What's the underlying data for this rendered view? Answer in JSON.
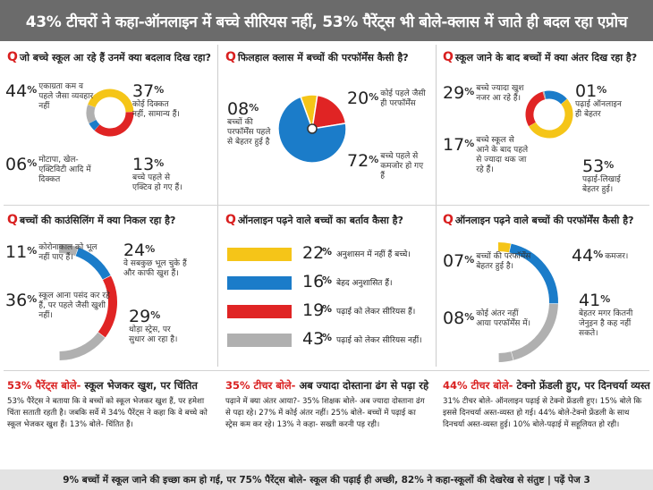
{
  "headline": "43% टीचरों ने कहा-ऑनलाइन में बच्चे सीरियस नहीं, 53% पैरेंट्स भी बोले-क्लास में जाते ही बदल रहा एप्रोच",
  "colors": {
    "yellow": "#f5c518",
    "red": "#e02424",
    "blue": "#1b7cc9",
    "gray": "#b0b0b0",
    "banner": "#6b6b6b"
  },
  "panels": {
    "p1": {
      "question": "जो बच्चे स्कूल आ रहे हैं उनमें क्या बदलाव दिख रहा?",
      "items": [
        {
          "num": "44",
          "pct": "%",
          "label": "एकाग्रता कम व पहले जैसा व्यवहार नहीं"
        },
        {
          "num": "37",
          "pct": "%",
          "label": "कोई दिक्कत नहीं, सामान्य हैं।"
        },
        {
          "num": "06",
          "pct": "%",
          "label": "मोटापा, खेल-एक्टिविटी आदि में दिक्कत"
        },
        {
          "num": "13",
          "pct": "%",
          "label": "बच्चे पहले से एक्टिव हो गए हैं।"
        }
      ]
    },
    "p2": {
      "question": "फिलहाल क्लास में बच्चों की परफॉर्मेंस कैसी है?",
      "items": [
        {
          "num": "08",
          "pct": "%",
          "label": "बच्चों की परफॉर्मेंस पहले से बेहतर हुई है"
        },
        {
          "num": "20",
          "pct": "%",
          "label": "कोई पहले जैसी ही परफॉर्मेंस"
        },
        {
          "num": "72",
          "pct": "%",
          "label": "बच्चे पहले से कमजोर हो गए हैं"
        }
      ]
    },
    "p3": {
      "question": "स्कूल जाने के बाद बच्चों में क्या अंतर दिख रहा है?",
      "items": [
        {
          "num": "29",
          "pct": "%",
          "label": "बच्चे ज्यादा खुश नजर आ रहे हैं।"
        },
        {
          "num": "01",
          "pct": "%",
          "label": "पढ़ाई ऑनलाइन ही बेहतर"
        },
        {
          "num": "17",
          "pct": "%",
          "label": "बच्चे स्कूल से आने के बाद पहले से ज्यादा थक जा रहे हैं।"
        },
        {
          "num": "53",
          "pct": "%",
          "label": "पढ़ाई-लिखाई बेहतर हुई।"
        }
      ]
    },
    "p4": {
      "question": "बच्चों की काउंसिलिंग में क्या निकल रहा है?",
      "items": [
        {
          "num": "11",
          "pct": "%",
          "label": "कोरोनाकाल को भूल नहीं पाए हैं।"
        },
        {
          "num": "24",
          "pct": "%",
          "label": "वे सबकुछ भूल चुके हैं और काफी खुश हैं।"
        },
        {
          "num": "36",
          "pct": "%",
          "label": "स्कूल आना पसंद कर रहे हैं, पर पहले जैसी खुशी नहीं।"
        },
        {
          "num": "29",
          "pct": "%",
          "label": "थोड़ा स्ट्रेस, पर सुधार आ रहा है।"
        }
      ]
    },
    "p5": {
      "question": "ऑनलाइन पढ़ने वाले बच्चों का बर्ताव कैसा है?",
      "items": [
        {
          "num": "22",
          "pct": "%",
          "label": "अनुशासन में नहीं हैं बच्चे।"
        },
        {
          "num": "16",
          "pct": "%",
          "label": "बेहद अनुशासित हैं।"
        },
        {
          "num": "19",
          "pct": "%",
          "label": "पढ़ाई को लेकर सीरियस हैं।"
        },
        {
          "num": "43",
          "pct": "%",
          "label": "पढ़ाई को लेकर सीरियस नहीं।"
        }
      ]
    },
    "p6": {
      "question": "ऑनलाइन पढ़ने वाले बच्चों की परफॉर्मेंस कैसी है?",
      "items": [
        {
          "num": "07",
          "pct": "%",
          "label": "बच्चों की परफॉर्मेंस बेहतर हुई है।"
        },
        {
          "num": "44",
          "pct": "%",
          "label": "कमजर।"
        },
        {
          "num": "41",
          "pct": "%",
          "label": "बेहतर मगर कितनी जेनुइन है कह नहीं सकते।"
        },
        {
          "num": "08",
          "pct": "%",
          "label": "कोई अंतर नहीं आया परफॉर्मेंस में।"
        }
      ]
    }
  },
  "lower": {
    "l1": {
      "head_red": "53% पैरेंट्स बोले-",
      "head_rest": " स्कूल भेजकर खुश, पर चिंतित",
      "body": "53% पैरेंट्स ने बताया कि वे बच्चों को स्कूल भेजकर खुश हैं, पर हमेशा चिंता सताती रहती है। जबकि सर्वे में 34% पैरेंट्स ने कहा कि वे बच्चे को स्कूल भेजकर खुश हैं। 13% बोले- चिंतित हैं।"
    },
    "l2": {
      "head_red": "35% टीचर बोले-",
      "head_rest": " अब ज्यादा दोस्ताना ढंग से पढ़ा रहे",
      "body": "पढ़ाने में क्या अंतर आया?- 35% शिक्षक बोले- अब ज्यादा दोस्ताना ढंग से पढ़ा रहे। 27% में कोई अंतर नहीं। 25% बोले- बच्चों में पढ़ाई का स्ट्रेस कम कर रहे। 13% ने कहा- सख्ती करनी पड़ रही।"
    },
    "l3": {
      "head_red": "44% टीचर बोले-",
      "head_rest": " टेक्नो फ्रेंडली हुए, पर दिनचर्या व्यस्त",
      "body": "31% टीचर बोले- ऑनलाइन पढ़ाई से टेक्नो फ्रेंडली हुए। 15% बोले कि इससे दिनचर्या अस्त-व्यस्त हो गई। 44% बोले-टेक्नो फ्रेंडली के साथ दिनचर्या अस्त-व्यस्त हुई। 10% बोले-पढ़ाई में सहूलियत हो रही।"
    }
  },
  "footer": "9% बच्चों में स्कूल जाने की इच्छा कम हो गई, पर 75% पैरेंट्स बोले- स्कूल की पढ़ाई ही अच्छी, 82% ने कहा-स्कूलों की देखरेख से संतुष्ट | पढ़ें पेज 3",
  "chart_data": [
    {
      "type": "pie",
      "title": "जो बच्चे स्कूल आ रहे हैं उनमें क्या बदलाव दिख रहा?",
      "categories": [
        "एकाग्रता कम व पहले जैसा व्यवहार नहीं",
        "कोई दिक्कत नहीं, सामान्य हैं।",
        "मोटापा, खेल-एक्टिविटी आदि में दिक्कत",
        "बच्चे पहले से एक्टिव हो गए हैं।"
      ],
      "values": [
        44,
        37,
        6,
        13
      ]
    },
    {
      "type": "pie",
      "title": "फिलहाल क्लास में बच्चों की परफॉर्मेंस कैसी है?",
      "categories": [
        "बेहतर",
        "पहले जैसी",
        "कमजोर"
      ],
      "values": [
        8,
        20,
        72
      ]
    },
    {
      "type": "pie",
      "title": "स्कूल जाने के बाद बच्चों में क्या अंतर दिख रहा है?",
      "categories": [
        "खुश",
        "ऑनलाइन ही बेहतर",
        "थक जा रहे",
        "पढ़ाई-लिखाई बेहतर"
      ],
      "values": [
        29,
        1,
        17,
        53
      ]
    },
    {
      "type": "pie",
      "title": "बच्चों की काउंसिलिंग में क्या निकल रहा है?",
      "categories": [
        "कोरोनाकाल को भूल नहीं पाए",
        "काफी खुश",
        "पहले जैसी खुशी नहीं",
        "थोड़ा स्ट्रेस"
      ],
      "values": [
        11,
        24,
        36,
        29
      ]
    },
    {
      "type": "bar",
      "title": "ऑनलाइन पढ़ने वाले बच्चों का बर्ताव कैसा है?",
      "categories": [
        "अनुशासन में नहीं",
        "बेहद अनुशासित",
        "सीरियस",
        "सीरियस नहीं"
      ],
      "values": [
        22,
        16,
        19,
        43
      ]
    },
    {
      "type": "pie",
      "title": "ऑनलाइन पढ़ने वाले बच्चों की परफॉर्मेंस कैसी है?",
      "categories": [
        "बेहतर",
        "कमजर",
        "जेनुइन नहीं कह सकते",
        "कोई अंतर नहीं"
      ],
      "values": [
        7,
        44,
        41,
        8
      ]
    }
  ]
}
